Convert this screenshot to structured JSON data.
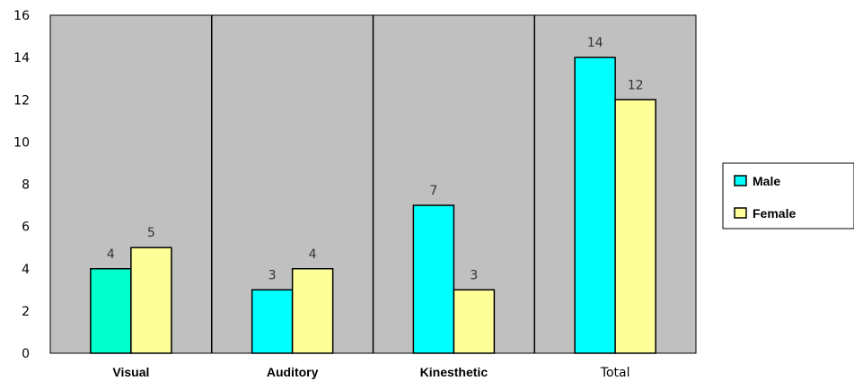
{
  "chart_data": {
    "type": "bar",
    "categories": [
      "Visual",
      "Auditory",
      "Kinesthetic",
      "Total"
    ],
    "series": [
      {
        "name": "Male",
        "values": [
          4,
          3,
          7,
          14
        ],
        "color": "#00ffff"
      },
      {
        "name": "Female",
        "values": [
          5,
          4,
          3,
          12
        ],
        "color": "#ffff99"
      }
    ],
    "point_colors": {
      "Male": [
        "#00ffcc",
        "#00ffff",
        "#00ffff",
        "#00ffff"
      ]
    },
    "ylim": [
      0,
      16
    ],
    "yticks": [
      "0",
      "2",
      "4",
      "6",
      "8",
      "10",
      "12",
      "14",
      "16"
    ],
    "data_labels": [
      [
        "4",
        "3",
        "7",
        "14"
      ],
      [
        "5",
        "4",
        "3",
        "12"
      ]
    ],
    "plot_background": "#c0c0c0",
    "grid": false,
    "legend_position": "right"
  }
}
